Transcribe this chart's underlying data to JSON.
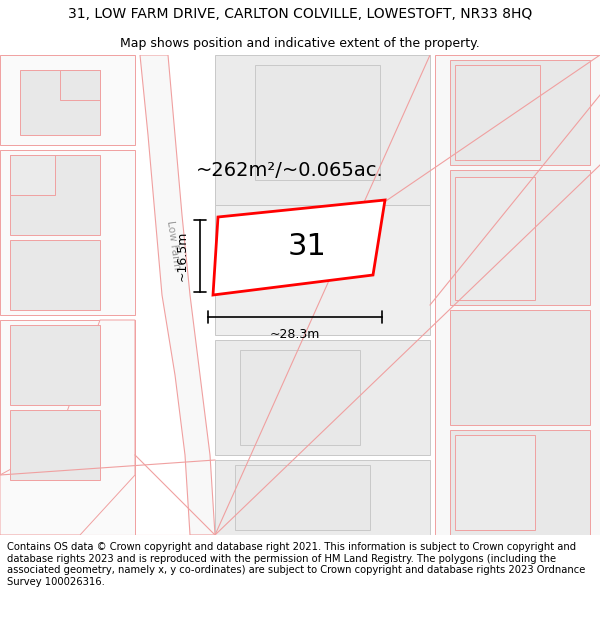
{
  "title_line1": "31, LOW FARM DRIVE, CARLTON COLVILLE, LOWESTOFT, NR33 8HQ",
  "title_line2": "Map shows position and indicative extent of the property.",
  "area_label": "~262m²/~0.065ac.",
  "property_number": "31",
  "width_label": "~28.3m",
  "height_label": "~16.5m",
  "road_label": "Low Farm",
  "footer_text": "Contains OS data © Crown copyright and database right 2021. This information is subject to Crown copyright and database rights 2023 and is reproduced with the permission of HM Land Registry. The polygons (including the associated geometry, namely x, y co-ordinates) are subject to Crown copyright and database rights 2023 Ordnance Survey 100026316.",
  "bg_color": "#ffffff",
  "gray_fill": "#e8e8e8",
  "gray_fill2": "#ebebeb",
  "pink": "#f0a0a0",
  "red": "#ff0000",
  "title_fs": 10,
  "subtitle_fs": 9,
  "area_fs": 14,
  "num_fs": 22,
  "dim_fs": 9,
  "road_fs": 7.5,
  "footer_fs": 7.2
}
